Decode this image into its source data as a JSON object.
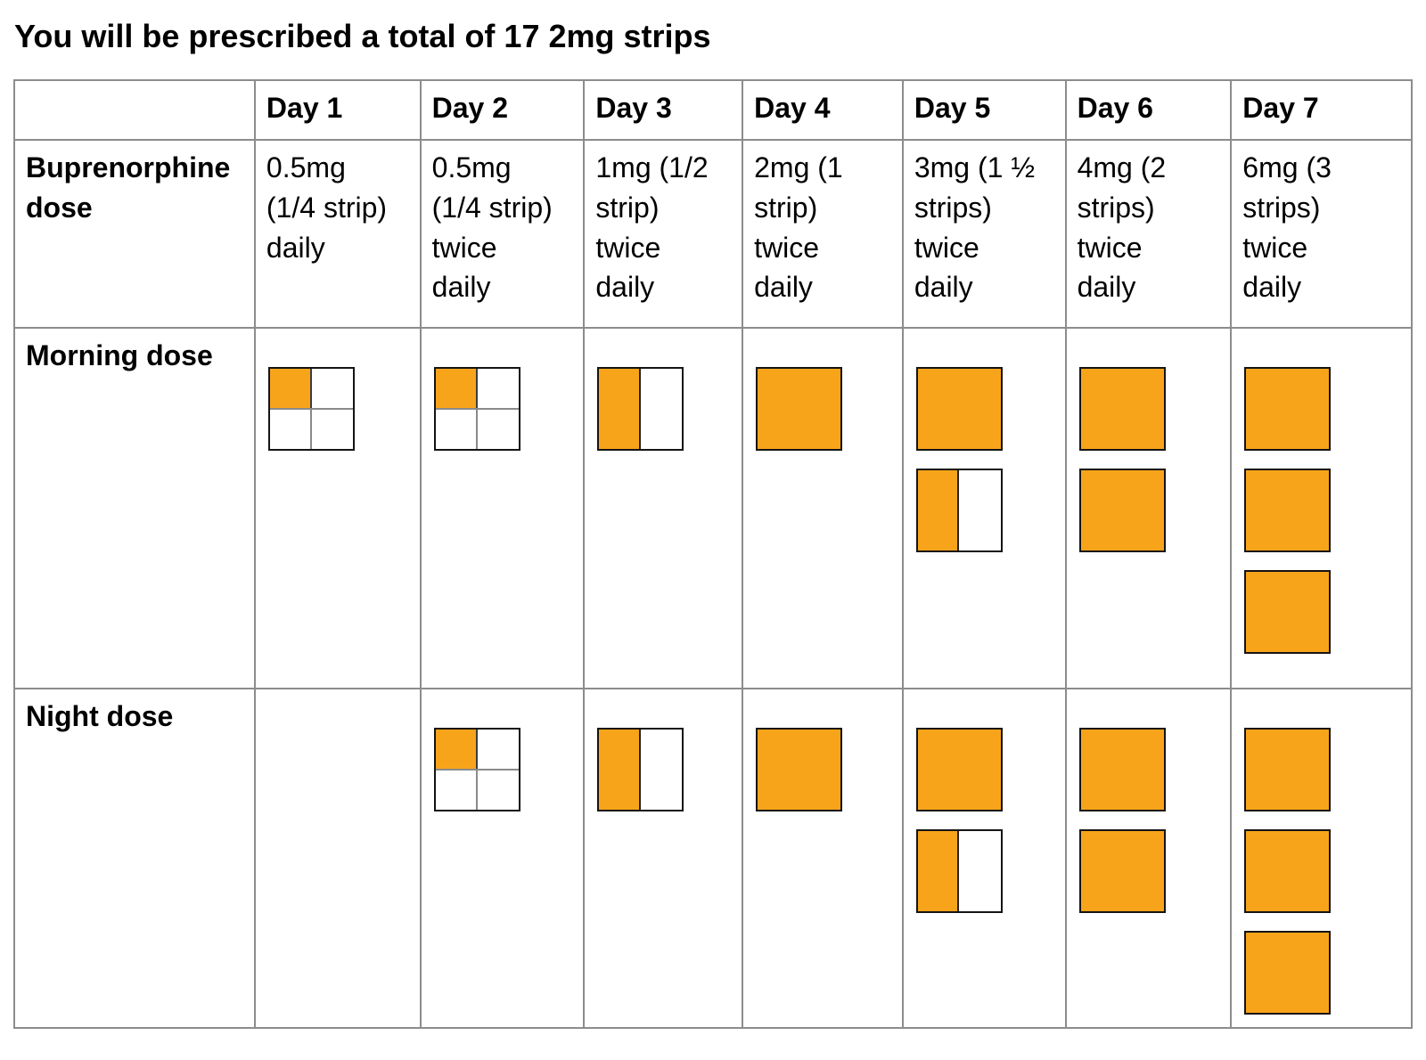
{
  "title": "You will be prescribed a total of 17 2mg strips",
  "table": {
    "corner_label": "",
    "row_labels": {
      "dose": "Buprenorphine dose",
      "morning": "Morning dose",
      "night": "Night dose"
    },
    "days": [
      {
        "label": "Day 1",
        "dose": "0.5mg\n(1/4 strip)\ndaily",
        "morning": [
          "quarter"
        ],
        "night": []
      },
      {
        "label": "Day 2",
        "dose": "0.5mg\n(1/4 strip)\ntwice\ndaily",
        "morning": [
          "quarter"
        ],
        "night": [
          "quarter"
        ]
      },
      {
        "label": "Day 3",
        "dose": "1mg (1/2\nstrip)\ntwice\ndaily",
        "morning": [
          "half"
        ],
        "night": [
          "half"
        ]
      },
      {
        "label": "Day 4",
        "dose": "2mg (1\nstrip)\ntwice\ndaily",
        "morning": [
          "full"
        ],
        "night": [
          "full"
        ]
      },
      {
        "label": "Day 5",
        "dose": "3mg (1 ½\nstrips)\ntwice\ndaily",
        "morning": [
          "full",
          "half"
        ],
        "night": [
          "full",
          "half"
        ]
      },
      {
        "label": "Day 6",
        "dose": "4mg (2\nstrips)\ntwice\ndaily",
        "morning": [
          "full",
          "full"
        ],
        "night": [
          "full",
          "full"
        ]
      },
      {
        "label": "Day 7",
        "dose": "6mg (3\nstrips)\ntwice\ndaily",
        "morning": [
          "full",
          "full",
          "full"
        ],
        "night": [
          "full",
          "full",
          "full"
        ]
      }
    ]
  },
  "colors": {
    "strip_fill": "#F8A41B",
    "strip_border": "#141414",
    "strip_grid": "#8a8a8a",
    "table_border": "#8c8c8c",
    "text": "#000000"
  }
}
